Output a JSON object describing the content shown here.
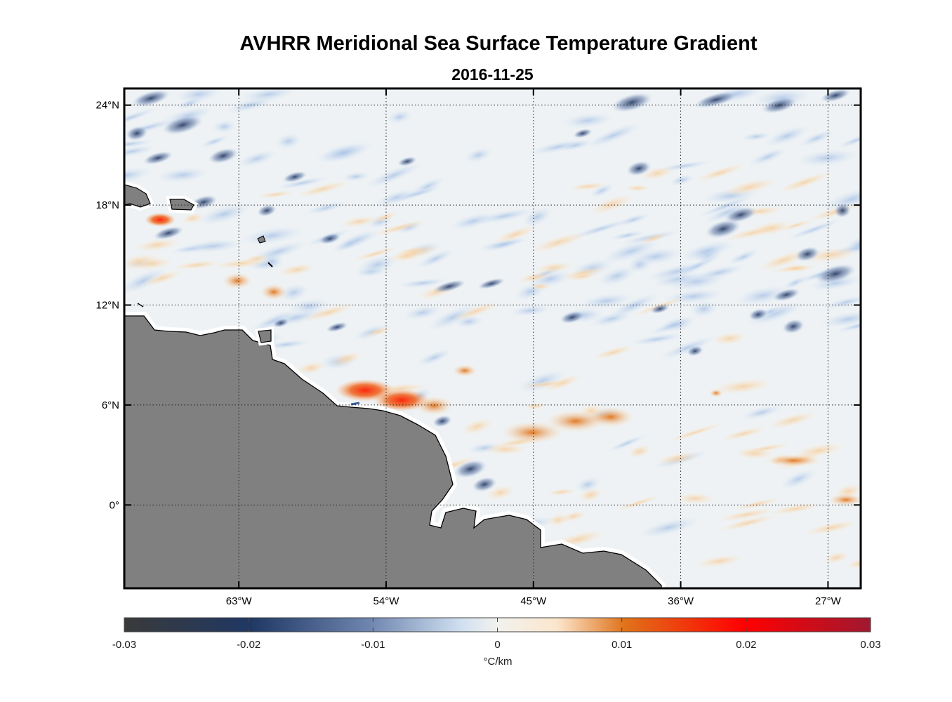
{
  "title": "AVHRR Meridional Sea Surface Temperature Gradient",
  "date": "2016-11-25",
  "map": {
    "lat_ticks": [
      {
        "value": 24,
        "label": "24°N"
      },
      {
        "value": 18,
        "label": "18°N"
      },
      {
        "value": 12,
        "label": "12°N"
      },
      {
        "value": 6,
        "label": "6°N"
      },
      {
        "value": 0,
        "label": "0°"
      }
    ],
    "lon_ticks": [
      {
        "value": -63,
        "label": "63°W"
      },
      {
        "value": -54,
        "label": "54°W"
      },
      {
        "value": -45,
        "label": "45°W"
      },
      {
        "value": -36,
        "label": "36°W"
      },
      {
        "value": -27,
        "label": "27°W"
      }
    ],
    "lon_range": [
      -70,
      -25
    ],
    "lat_range": [
      -5,
      25
    ],
    "grid": true,
    "land_color": "#808080"
  },
  "colorbar": {
    "min": -0.03,
    "max": 0.03,
    "tick_labels": [
      "-0.03",
      "-0.02",
      "-0.01",
      "0",
      "0.01",
      "0.02",
      "0.03"
    ],
    "unit": "°C/km",
    "colors": [
      "#3a3a3a",
      "#1f3864",
      "#b9d0ea",
      "#f2f2ee",
      "#fbe6cc",
      "#e0731a",
      "#ff0000",
      "#a01830"
    ]
  }
}
